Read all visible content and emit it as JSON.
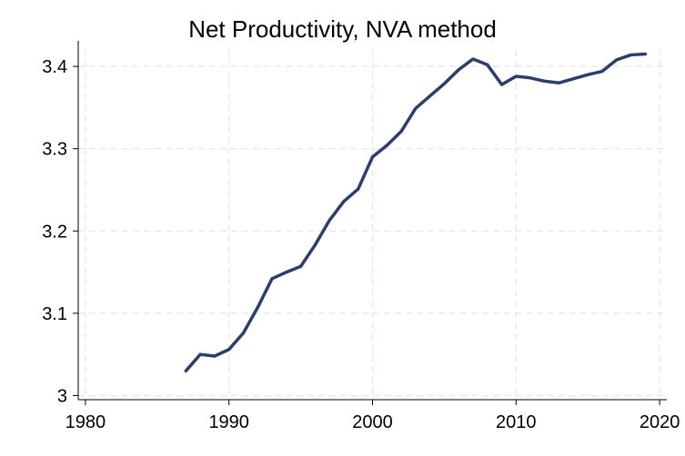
{
  "chart_data": {
    "type": "line",
    "title": "Net Productivity, NVA method",
    "xlabel": "",
    "ylabel": "",
    "xlim": [
      1980,
      2020
    ],
    "ylim": [
      3.0,
      3.4
    ],
    "x_ticks": [
      1980,
      1990,
      2000,
      2010,
      2020
    ],
    "y_ticks": [
      3.0,
      3.1,
      3.2,
      3.3,
      3.4
    ],
    "x_tick_labels": [
      "1980",
      "1990",
      "2000",
      "2010",
      "2020"
    ],
    "y_tick_labels": [
      "3",
      "3.1",
      "3.2",
      "3.3",
      "3.4"
    ],
    "grid": true,
    "legend": "none",
    "colors": {
      "line": "#2b3f6b",
      "grid": "#e6e6e6",
      "axis": "#000000"
    },
    "series": [
      {
        "x": [
          1987,
          1988,
          1989,
          1990,
          1991,
          1992,
          1993,
          1994,
          1995,
          1996,
          1997,
          1998,
          1999,
          2000,
          2001,
          2002,
          2003,
          2004,
          2005,
          2006,
          2007,
          2008,
          2009,
          2010,
          2011,
          2012,
          2013,
          2014,
          2015,
          2016,
          2017,
          2018,
          2019
        ],
        "values": [
          3.03,
          3.05,
          3.048,
          3.056,
          3.076,
          3.107,
          3.142,
          3.15,
          3.157,
          3.183,
          3.213,
          3.236,
          3.251,
          3.29,
          3.304,
          3.321,
          3.349,
          3.364,
          3.379,
          3.396,
          3.409,
          3.402,
          3.378,
          3.388,
          3.386,
          3.382,
          3.38,
          3.385,
          3.39,
          3.394,
          3.408,
          3.414,
          3.415
        ]
      }
    ]
  }
}
